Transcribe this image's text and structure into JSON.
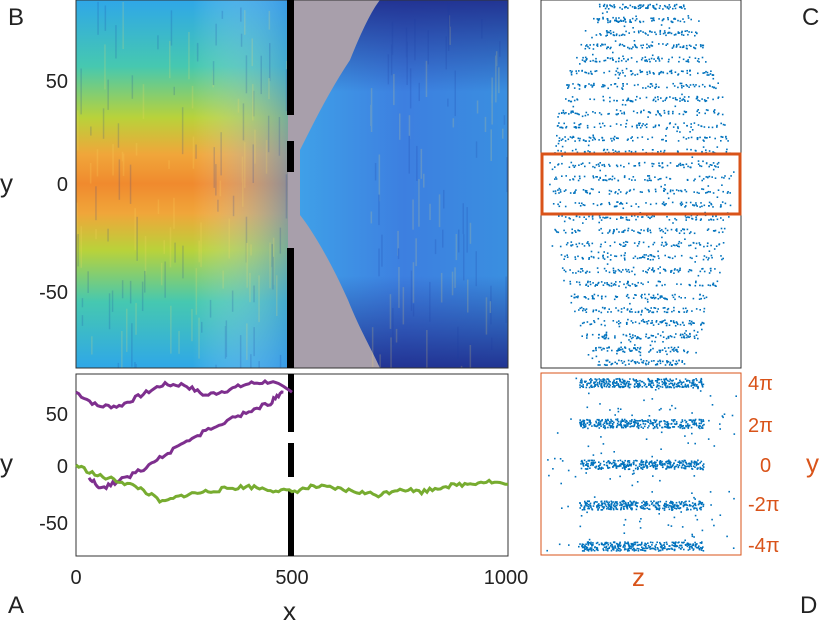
{
  "panel_letters": {
    "a": "A",
    "b": "B",
    "c": "C",
    "d": "D"
  },
  "colors": {
    "purple": "#7e2f8e",
    "green": "#77ac30",
    "orange": "#d95319",
    "scatter_blue": "#0072bd",
    "barrier": "#000000",
    "empty": "#a89fab"
  },
  "chart_data": [
    {
      "id": "B",
      "type": "heatmap",
      "colormap": "parula",
      "xlabel": "",
      "ylabel": "y",
      "xlim": [
        0,
        1000
      ],
      "ylim": [
        -85,
        85
      ],
      "yticks": [
        50,
        0,
        -50
      ],
      "barrier_x": 500,
      "barrier_gaps_y": [
        [
          20,
          30
        ],
        [
          -25,
          -15
        ]
      ],
      "peak_density_y": 0,
      "peak_density_x": 50
    },
    {
      "id": "A",
      "type": "line",
      "xlabel": "x",
      "ylabel": "y",
      "xlim": [
        0,
        1000
      ],
      "ylim": [
        -85,
        85
      ],
      "xticks": [
        0,
        500,
        1000
      ],
      "yticks": [
        50,
        0,
        -50
      ],
      "barrier_x": 500,
      "barrier_gaps_y": [
        [
          20,
          30
        ],
        [
          -25,
          -15
        ]
      ],
      "series": [
        {
          "color": "purple",
          "x": [
            0,
            50,
            100,
            150,
            200,
            250,
            300,
            350,
            400,
            450,
            500
          ],
          "y": [
            68,
            55,
            55,
            65,
            75,
            75,
            65,
            70,
            76,
            78,
            68
          ]
        },
        {
          "color": "purple",
          "x": [
            480,
            450,
            400,
            350,
            300,
            250,
            200,
            150,
            100,
            60,
            30
          ],
          "y": [
            70,
            58,
            50,
            42,
            32,
            20,
            8,
            -5,
            -15,
            -22,
            -12
          ]
        },
        {
          "color": "green",
          "x": [
            0,
            50,
            100,
            150,
            200,
            250,
            300,
            350,
            400,
            450,
            500,
            550,
            600,
            650,
            700,
            750,
            800,
            850,
            900,
            950,
            1000
          ],
          "y": [
            0,
            -10,
            -15,
            -22,
            -35,
            -28,
            -25,
            -22,
            -20,
            -23,
            -25,
            -20,
            -22,
            -25,
            -28,
            -22,
            -25,
            -20,
            -18,
            -15,
            -18
          ]
        }
      ]
    },
    {
      "id": "C",
      "type": "scatter",
      "xlabel": "",
      "ylabel": "",
      "ylim": [
        -85,
        85
      ],
      "band_spacing": 6.2832,
      "highlight_box_y": [
        -14,
        14
      ]
    },
    {
      "id": "D",
      "type": "scatter",
      "xlabel": "z",
      "ylabel": "y",
      "ylim": [
        -14,
        14
      ],
      "ytick_labels": [
        "4π",
        "2π",
        "0",
        "-2π",
        "-4π"
      ],
      "yticks": [
        12.566,
        6.283,
        0,
        -6.283,
        -12.566
      ]
    }
  ]
}
